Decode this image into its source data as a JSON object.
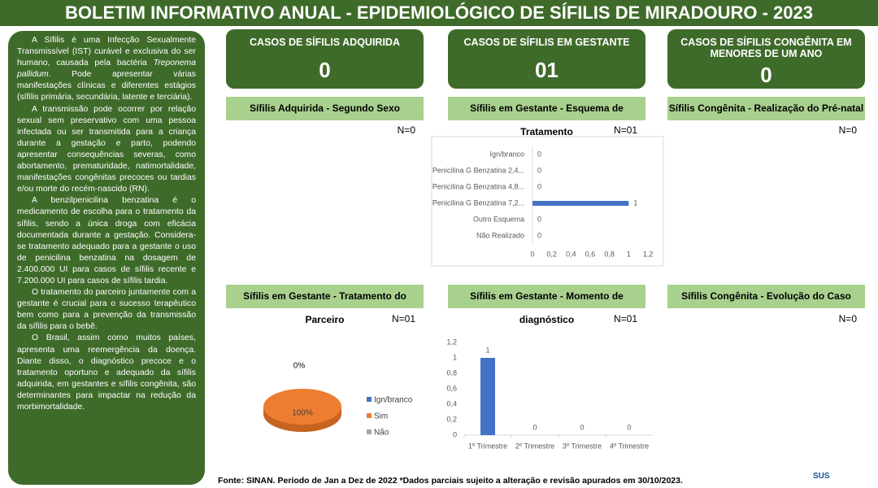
{
  "header": {
    "title": "BOLETIM INFORMATIVO ANUAL - EPIDEMIOLÓGICO DE SÍFILIS DE MIRADOURO - 2023"
  },
  "intro": {
    "first": [
      "A Sífilis é uma Infecção Sexualmente Transmissível (IST) curável e exclusiva do ser humano, causada pela bactéria ",
      "Treponema pallidum",
      ". Pode apresentar várias manifestações clínicas e diferentes estágios (sífilis primária, secundária, latente e terciária)."
    ],
    "paragraphs": [
      "A transmissão pode ocorrer por relação sexual sem preservativo com uma pessoa infectada ou ser transmitida para a criança durante a gestação e parto, podendo apresentar consequências severas, como abortamento, prematuridade, natimortalidade, manifestações congênitas precoces ou tardias e/ou morte do recém-nascido (RN).",
      "A benzilpenicilina benzatina é o medicamento de escolha para o tratamento da sífilis, sendo a única droga com eficácia documentada durante a gestação. Considera-se tratamento adequado para a gestante o uso de penicilina benzatina na dosagem de 2.400.000 UI para casos de sífilis recente e 7.200.000 UI para casos de sífilis tardia.",
      "O tratamento do parceiro juntamente com a gestante é crucial para o sucesso terapêutico bem como para a prevenção da transmissão da sífilis para o bebê.",
      "O Brasil, assim como muitos países, apresenta uma reemergência da doença. Diante disso, o diagnóstico precoce e o tratamento oportuno e adequado da sífilis adquirida, em gestantes e sífilis congênita, são determinantes para impactar na redução da morbimortalidade."
    ]
  },
  "cards": [
    {
      "title": "CASOS DE SÍFILIS ADQUIRIDA",
      "value": "0"
    },
    {
      "title": "CASOS DE SÍFILIS EM GESTANTE",
      "value": "01"
    },
    {
      "title": "CASOS DE SÍFILIS CONGÊNITA EM MENORES DE UM ANO",
      "value": "0"
    }
  ],
  "panels": [
    {
      "title": "Sífilis Adquirida - Segundo Sexo",
      "n": "N=0"
    },
    {
      "title": "Sífilis em Gestante - Esquema de Tratamento",
      "n": "N=01"
    },
    {
      "title": "Sífilis Congênita - Realização do Pré-natal",
      "n": "N=0"
    },
    {
      "title": "Sífilis em Gestante - Tratamento do Parceiro",
      "n": "N=01"
    },
    {
      "title": "Sífilis em Gestante - Momento de diagnóstico",
      "n": "N=01"
    },
    {
      "title": "Sífilis Congênita - Evolução do Caso",
      "n": "N=0"
    }
  ],
  "chart_data": [
    {
      "type": "barh",
      "categories": [
        "Ign/branco",
        "Penicilina G Benzatina 2,4...",
        "Penicilina G Benzatina 4,8...",
        "Penicilina G Benzatina 7,2...",
        "Outro Esquema",
        "Não Realizado"
      ],
      "values": [
        0,
        0,
        0,
        1,
        0,
        0
      ],
      "color": "#4472c4",
      "xlim": [
        0,
        1.2
      ],
      "xticks": [
        0,
        {
          "value": 0.2,
          "label": "0,2"
        },
        {
          "value": 0.4,
          "label": "0,4"
        },
        {
          "value": 0.6,
          "label": "0,6"
        },
        {
          "value": 0.8,
          "label": "0,8"
        },
        1,
        {
          "value": 1.2,
          "label": "1,2"
        }
      ]
    },
    {
      "type": "pie",
      "categories": [
        "Ign/branco",
        "Sim",
        "Não"
      ],
      "values": [
        0,
        100,
        0
      ],
      "value_labels": [
        "0%",
        "100%",
        "0%"
      ],
      "colors": [
        "#4472c4",
        "#ed7d31",
        "#a5a5a5"
      ]
    },
    {
      "type": "bar",
      "categories": [
        "1º Trimestre",
        "2º Trimestre",
        "3º Trimestre",
        "4º Trimestre"
      ],
      "values": [
        1,
        0,
        0,
        0
      ],
      "color": "#4472c4",
      "ylim": [
        0,
        1.2
      ],
      "yticks": [
        0,
        {
          "value": 0.2,
          "label": "0,2"
        },
        {
          "value": 0.4,
          "label": "0,4"
        },
        {
          "value": 0.6,
          "label": "0,6"
        },
        {
          "value": 0.8,
          "label": "0,8"
        },
        1,
        {
          "value": 1.2,
          "label": "1,2"
        }
      ]
    }
  ],
  "footer": "Fonte: SINAN. Período de Jan a Dez de 2022 *Dados parciais sujeito a alteração e revisão apurados em 30/10/2023.",
  "logo": "SUS"
}
